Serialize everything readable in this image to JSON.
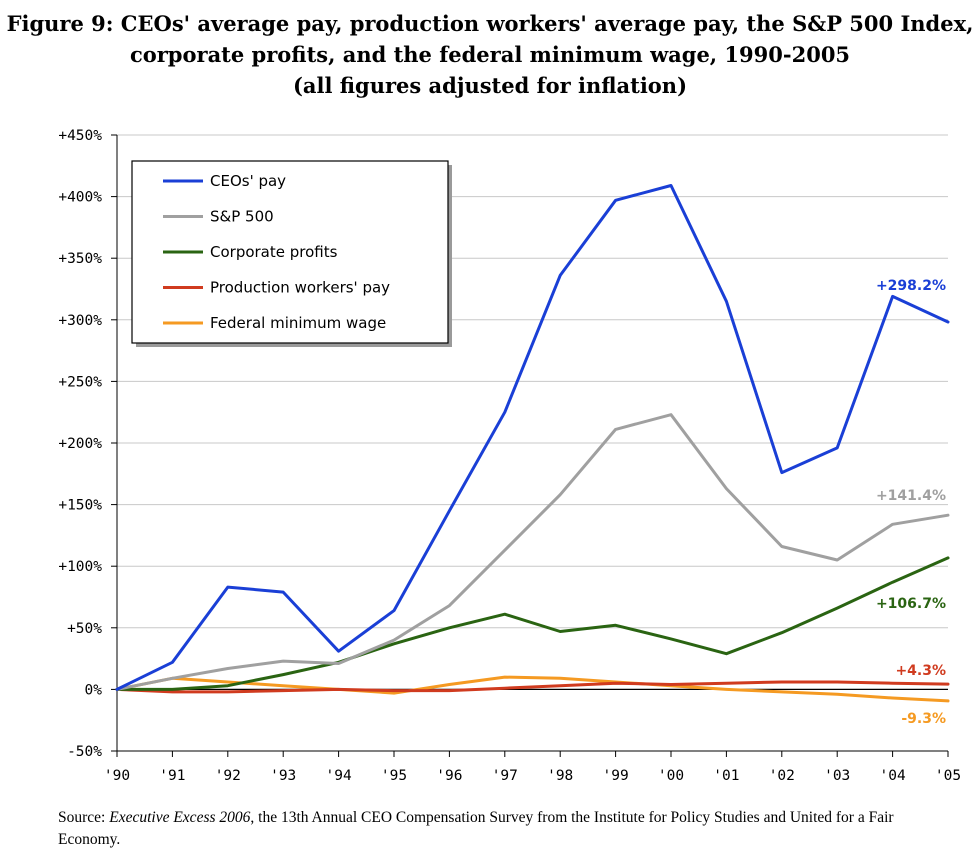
{
  "title": {
    "line1": "Figure 9: CEOs' average pay, production workers' average pay, the S&P 500 Index,",
    "line2": "corporate profits, and the federal minimum wage, 1990-2005",
    "line3": "(all figures adjusted for inflation)"
  },
  "source": {
    "prefix": "Source: ",
    "italic": "Executive Excess 2006",
    "rest": ", the 13th Annual CEO Compensation Survey from the Institute for Policy Studies and United for a Fair Economy."
  },
  "chart_data": {
    "type": "line",
    "x": [
      "'90",
      "'91",
      "'92",
      "'93",
      "'94",
      "'95",
      "'96",
      "'97",
      "'98",
      "'99",
      "'00",
      "'01",
      "'02",
      "'03",
      "'04",
      "'05"
    ],
    "y_ticks": [
      "+450%",
      "+400%",
      "+350%",
      "+300%",
      "+250%",
      "+200%",
      "+150%",
      "+100%",
      "+50%",
      "0%",
      "-50%"
    ],
    "ylim": [
      -50,
      450
    ],
    "grid": "horizontal",
    "legend_position": "top-left",
    "series": [
      {
        "name": "CEOs' pay",
        "color": "#1a3fd6",
        "values": [
          0,
          22,
          83,
          79,
          31,
          64,
          145,
          225,
          336,
          397,
          409,
          315,
          176,
          196,
          319,
          298.2
        ],
        "end_label": "+298.2%"
      },
      {
        "name": "S&P 500",
        "color": "#a0a0a0",
        "values": [
          0,
          9,
          17,
          23,
          21,
          40,
          68,
          113,
          158,
          211,
          223,
          163,
          116,
          105,
          134,
          141.4
        ],
        "end_label": "+141.4%"
      },
      {
        "name": "Corporate profits",
        "color": "#2a6412",
        "values": [
          0,
          0,
          3,
          12,
          22,
          37,
          50,
          61,
          47,
          52,
          41,
          29,
          46,
          66,
          87,
          106.7
        ],
        "end_label": "+106.7%"
      },
      {
        "name": "Production workers' pay",
        "color": "#d03b1f",
        "values": [
          0,
          -2,
          -2,
          -1,
          0,
          -1,
          -1,
          1,
          3,
          5,
          4,
          5,
          6,
          6,
          5,
          4.3
        ],
        "end_label": "+4.3%"
      },
      {
        "name": "Federal minimum wage",
        "color": "#f59a22",
        "values": [
          0,
          9,
          6,
          3,
          0,
          -3,
          4,
          10,
          9,
          6,
          3,
          0,
          -2,
          -4,
          -7,
          -9.3
        ],
        "end_label": "-9.3%"
      }
    ]
  }
}
